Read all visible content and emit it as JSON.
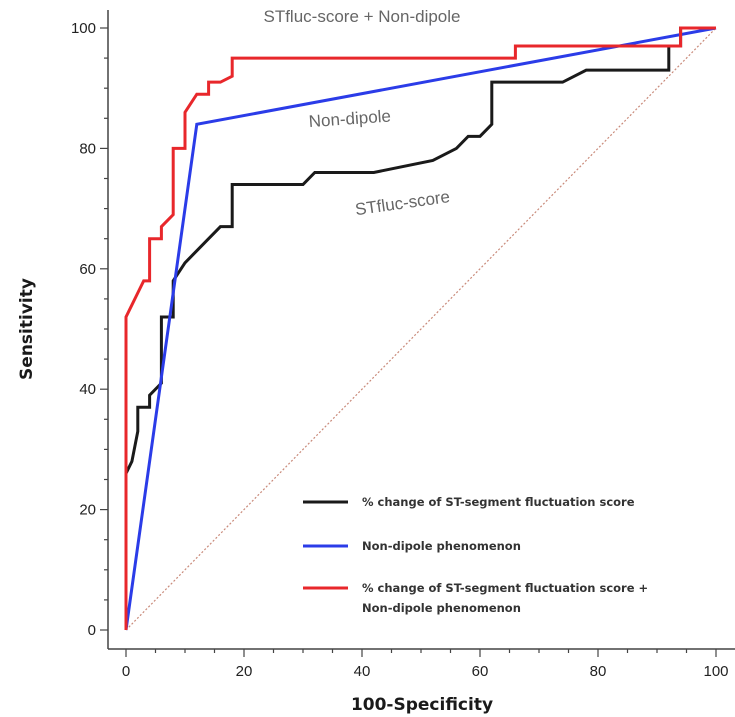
{
  "chart_data": {
    "type": "line",
    "xlabel": "100-Specificity",
    "ylabel": "Sensitivity",
    "xlim": [
      0,
      100
    ],
    "ylim": [
      0,
      100
    ],
    "xticks": [
      "0",
      "20",
      "40",
      "60",
      "80",
      "100"
    ],
    "yticks": [
      "0",
      "20",
      "40",
      "60",
      "80",
      "100"
    ],
    "grid": false,
    "legend_position": "bottom-right",
    "reference_line": {
      "x": [
        0,
        100
      ],
      "y": [
        0,
        100
      ],
      "color": "#c98a7a",
      "style": "dotted"
    },
    "annotations": [
      {
        "text": "STfluc-score + Non-dipole",
        "x": 40,
        "y": 101
      },
      {
        "text": "Non-dipole",
        "x": 38,
        "y": 84
      },
      {
        "text": "STfluc-score",
        "x": 47,
        "y": 70
      }
    ],
    "series": [
      {
        "name": "% change of ST-segment fluctuation score",
        "color": "#1a1a1a",
        "x": [
          0,
          0,
          1,
          1,
          2,
          2,
          4,
          4,
          6,
          6,
          8,
          8,
          10,
          14,
          16,
          16,
          18,
          18,
          30,
          32,
          42,
          52,
          56,
          58,
          60,
          62,
          62,
          74,
          78,
          92,
          92,
          94,
          94,
          100
        ],
        "y": [
          0,
          26,
          28,
          28,
          33,
          37,
          37,
          39,
          41,
          52,
          52,
          58,
          61,
          65,
          67,
          67,
          67,
          74,
          74,
          76,
          76,
          78,
          80,
          82,
          82,
          84,
          91,
          91,
          93,
          93,
          97,
          97,
          100,
          100
        ]
      },
      {
        "name": "Non-dipole phenomenon",
        "color": "#2b3ce8",
        "x": [
          0,
          12,
          100
        ],
        "y": [
          0,
          84,
          100
        ]
      },
      {
        "name": "% change of ST-segment fluctuation score + Non-dipole phenomenon",
        "legend_lines": [
          "% change of ST-segment fluctuation score +",
          "Non-dipole phenomenon"
        ],
        "color": "#e8272b",
        "x": [
          0,
          0,
          1,
          1,
          2,
          2,
          3,
          4,
          4,
          6,
          6,
          8,
          8,
          10,
          10,
          12,
          14,
          14,
          16,
          18,
          18,
          66,
          66,
          94,
          94,
          100
        ],
        "y": [
          0,
          52,
          54,
          54,
          56,
          56,
          58,
          58,
          65,
          65,
          67,
          69,
          80,
          80,
          86,
          89,
          89,
          91,
          91,
          92,
          95,
          95,
          97,
          97,
          100,
          100
        ]
      }
    ]
  }
}
